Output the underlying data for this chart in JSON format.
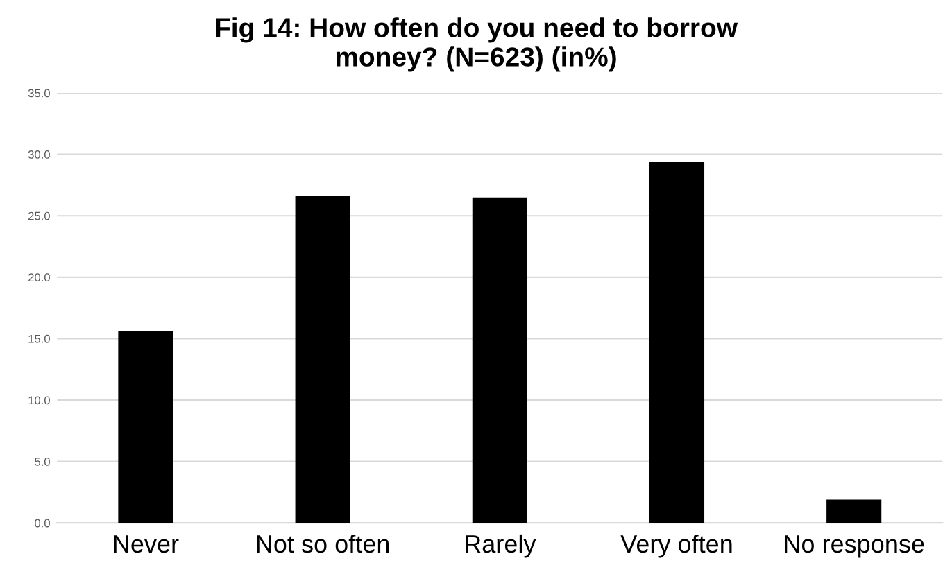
{
  "chart_data": {
    "type": "bar",
    "title": "Fig 14: How often do you need to borrow\nmoney? (N=623) (in%)",
    "categories": [
      "Never",
      "Not so often",
      "Rarely",
      "Very often",
      "No response"
    ],
    "values": [
      15.6,
      26.6,
      26.5,
      29.4,
      1.9
    ],
    "color": "#000000",
    "ylim": [
      0,
      35
    ],
    "yticks": [
      {
        "value": 0,
        "label": "0.0"
      },
      {
        "value": 5,
        "label": "5.0"
      },
      {
        "value": 10,
        "label": "10.0"
      },
      {
        "value": 15,
        "label": "15.0"
      },
      {
        "value": 20,
        "label": "20.0"
      },
      {
        "value": 25,
        "label": "25.0"
      },
      {
        "value": 30,
        "label": "30.0"
      },
      {
        "value": 35,
        "label": "35.0"
      }
    ],
    "grid": "y"
  }
}
